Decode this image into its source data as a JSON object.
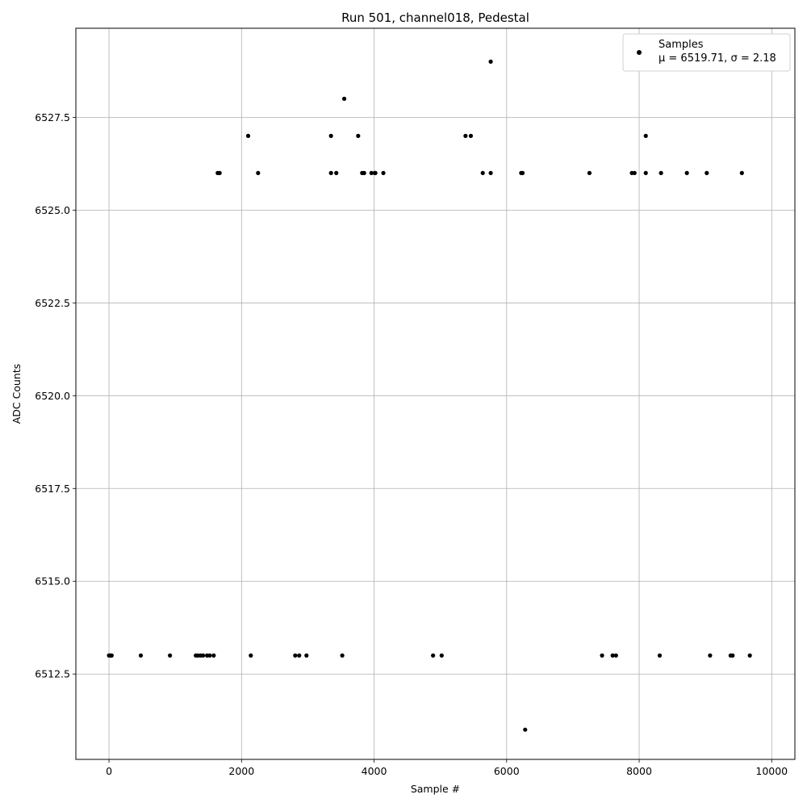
{
  "chart_data": {
    "type": "scatter",
    "title": "Run 501, channel018, Pedestal",
    "xlabel": "Sample #",
    "ylabel": "ADC Counts",
    "xlim": [
      -500,
      10350
    ],
    "ylim": [
      6510.2,
      6529.9
    ],
    "xticks": [
      0,
      2000,
      4000,
      6000,
      8000,
      10000
    ],
    "xtick_labels": [
      "0",
      "2000",
      "4000",
      "6000",
      "8000",
      "10000"
    ],
    "yticks": [
      6512.5,
      6515.0,
      6517.5,
      6520.0,
      6522.5,
      6525.0,
      6527.5
    ],
    "ytick_labels": [
      "6512.5",
      "6515.0",
      "6517.5",
      "6520.0",
      "6522.5",
      "6525.0",
      "6527.5"
    ],
    "grid": true,
    "legend": {
      "placement": "top-right",
      "entries": [
        {
          "label": "Samples",
          "sublabel": "μ = 6519.71, σ = 2.18"
        }
      ]
    },
    "marker_color": "#000000",
    "series": [
      {
        "name": "Samples",
        "points": [
          [
            5760,
            6529
          ],
          [
            3550,
            6528
          ],
          [
            2100,
            6527
          ],
          [
            3350,
            6527
          ],
          [
            3760,
            6527
          ],
          [
            5380,
            6527
          ],
          [
            5460,
            6527
          ],
          [
            8100,
            6527
          ],
          [
            1640,
            6526
          ],
          [
            1670,
            6526
          ],
          [
            2250,
            6526
          ],
          [
            3350,
            6526
          ],
          [
            3430,
            6526
          ],
          [
            3820,
            6526
          ],
          [
            3850,
            6526
          ],
          [
            3960,
            6526
          ],
          [
            4010,
            6526
          ],
          [
            4020,
            6526
          ],
          [
            4140,
            6526
          ],
          [
            5640,
            6526
          ],
          [
            5760,
            6526
          ],
          [
            6220,
            6526
          ],
          [
            6240,
            6526
          ],
          [
            7250,
            6526
          ],
          [
            7890,
            6526
          ],
          [
            7930,
            6526
          ],
          [
            8100,
            6526
          ],
          [
            8330,
            6526
          ],
          [
            8720,
            6526
          ],
          [
            9020,
            6526
          ],
          [
            9550,
            6526
          ],
          [
            6280,
            6511
          ],
          [
            0,
            6513
          ],
          [
            20,
            6513
          ],
          [
            40,
            6513
          ],
          [
            480,
            6513
          ],
          [
            920,
            6513
          ],
          [
            1310,
            6513
          ],
          [
            1340,
            6513
          ],
          [
            1380,
            6513
          ],
          [
            1420,
            6513
          ],
          [
            1480,
            6513
          ],
          [
            1520,
            6513
          ],
          [
            1580,
            6513
          ],
          [
            2140,
            6513
          ],
          [
            2810,
            6513
          ],
          [
            2870,
            6513
          ],
          [
            2980,
            6513
          ],
          [
            3520,
            6513
          ],
          [
            4890,
            6513
          ],
          [
            5020,
            6513
          ],
          [
            7440,
            6513
          ],
          [
            7600,
            6513
          ],
          [
            7650,
            6513
          ],
          [
            8310,
            6513
          ],
          [
            9070,
            6513
          ],
          [
            9380,
            6513
          ],
          [
            9410,
            6513
          ],
          [
            9670,
            6513
          ]
        ]
      }
    ]
  }
}
